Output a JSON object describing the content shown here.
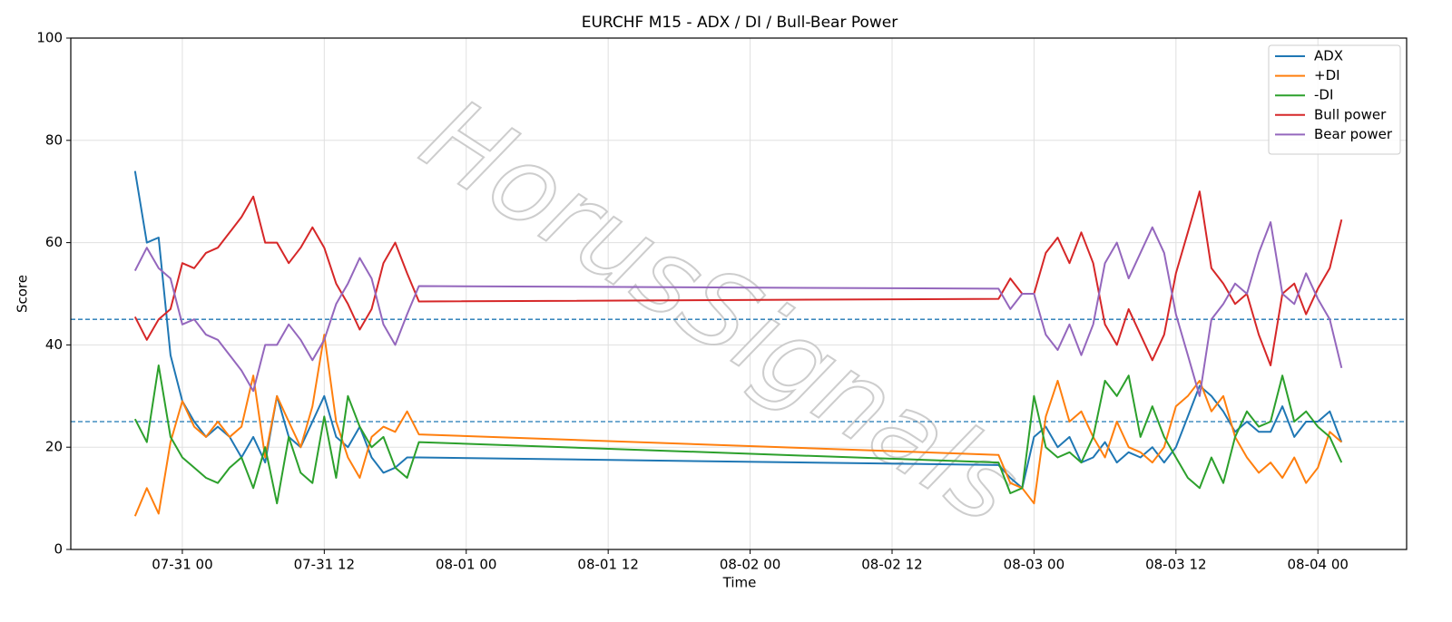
{
  "chart_data": {
    "type": "line",
    "title": "EURCHF M15 - ADX / DI / Bull-Bear Power",
    "xlabel": "Time",
    "ylabel": "Score",
    "watermark": "HorusSignals",
    "x": [
      -4,
      -3,
      -2,
      -1,
      0,
      1,
      2,
      3,
      4,
      5,
      6,
      7,
      8,
      9,
      10,
      11,
      12,
      13,
      14,
      15,
      16,
      17,
      18,
      19,
      20,
      69,
      70,
      71,
      72,
      73,
      74,
      75,
      76,
      77,
      78,
      79,
      80,
      81,
      82,
      83,
      84,
      85,
      86,
      87,
      88,
      89,
      90,
      91,
      92,
      93,
      94,
      95,
      96,
      97,
      98
    ],
    "xlim": [
      -9.43,
      103.5
    ],
    "xticks": [
      {
        "value": 0,
        "label": "07-31 00"
      },
      {
        "value": 12,
        "label": "07-31 12"
      },
      {
        "value": 24,
        "label": "08-01 00"
      },
      {
        "value": 36,
        "label": "08-01 12"
      },
      {
        "value": 48,
        "label": "08-02 00"
      },
      {
        "value": 60,
        "label": "08-02 12"
      },
      {
        "value": 72,
        "label": "08-03 00"
      },
      {
        "value": 84,
        "label": "08-03 12"
      },
      {
        "value": 96,
        "label": "08-04 00"
      }
    ],
    "ylim": [
      0,
      100
    ],
    "yticks": [
      0,
      20,
      40,
      60,
      80,
      100
    ],
    "grid": true,
    "legend": "upper right",
    "hlines": [
      45,
      25
    ],
    "hline_color": "#1f77b4",
    "series": [
      {
        "name": "ADX",
        "color": "#1f77b4",
        "values": [
          74,
          60,
          61,
          38,
          29,
          25,
          22,
          24,
          22,
          18,
          22,
          17,
          30,
          22,
          20,
          25,
          30,
          22,
          20,
          24,
          18,
          15,
          16,
          18,
          18,
          16.5,
          14,
          12,
          22,
          24,
          20,
          22,
          17,
          18,
          21,
          17,
          19,
          18,
          20,
          17,
          20,
          26,
          32,
          30,
          27,
          23,
          25,
          23,
          23,
          28,
          22,
          25,
          25,
          27,
          21
        ]
      },
      {
        "name": "+DI",
        "color": "#ff7f0e",
        "values": [
          6.5,
          12,
          7,
          21,
          29,
          24,
          22,
          25,
          22,
          24,
          34,
          18,
          30,
          25,
          20,
          28,
          42,
          25,
          18,
          14,
          22,
          24,
          23,
          27,
          22.5,
          18.5,
          13,
          12,
          9,
          26,
          33,
          25,
          27,
          22,
          18,
          25,
          20,
          19,
          17,
          20,
          28,
          30,
          33,
          27,
          30,
          22,
          18,
          15,
          17,
          14,
          18,
          13,
          16,
          23,
          21
        ]
      },
      {
        "name": "-DI",
        "color": "#2ca02c",
        "values": [
          25.5,
          21,
          36,
          22,
          18,
          16,
          14,
          13,
          16,
          18,
          12,
          20,
          9,
          22,
          15,
          13,
          26,
          14,
          30,
          24,
          20,
          22,
          16,
          14,
          21,
          17,
          11,
          12,
          30,
          20,
          18,
          19,
          17,
          22,
          33,
          30,
          34,
          22,
          28,
          22,
          18,
          14,
          12,
          18,
          13,
          22,
          27,
          24,
          25,
          34,
          25,
          27,
          24,
          22,
          17
        ]
      },
      {
        "name": "Bull power",
        "color": "#d62728",
        "values": [
          45.5,
          41,
          45,
          47,
          56,
          55,
          58,
          59,
          62,
          65,
          69,
          60,
          60,
          56,
          59,
          63,
          59,
          52,
          48,
          43,
          47,
          56,
          60,
          54,
          48.5,
          49,
          53,
          50,
          50,
          58,
          61,
          56,
          62,
          56,
          44,
          40,
          47,
          42,
          37,
          42,
          54,
          62,
          70,
          55,
          52,
          48,
          50,
          42,
          36,
          50,
          52,
          46,
          51,
          55,
          64.5
        ]
      },
      {
        "name": "Bear power",
        "color": "#9467bd",
        "values": [
          54.5,
          59,
          55,
          53,
          44,
          45,
          42,
          41,
          38,
          35,
          31,
          40,
          40,
          44,
          41,
          37,
          41,
          48,
          52,
          57,
          53,
          44,
          40,
          46,
          51.5,
          51,
          47,
          50,
          50,
          42,
          39,
          44,
          38,
          44,
          56,
          60,
          53,
          58,
          63,
          58,
          46,
          38,
          30,
          45,
          48,
          52,
          50,
          58,
          64,
          50,
          48,
          54,
          49,
          45,
          35.5
        ]
      }
    ]
  }
}
